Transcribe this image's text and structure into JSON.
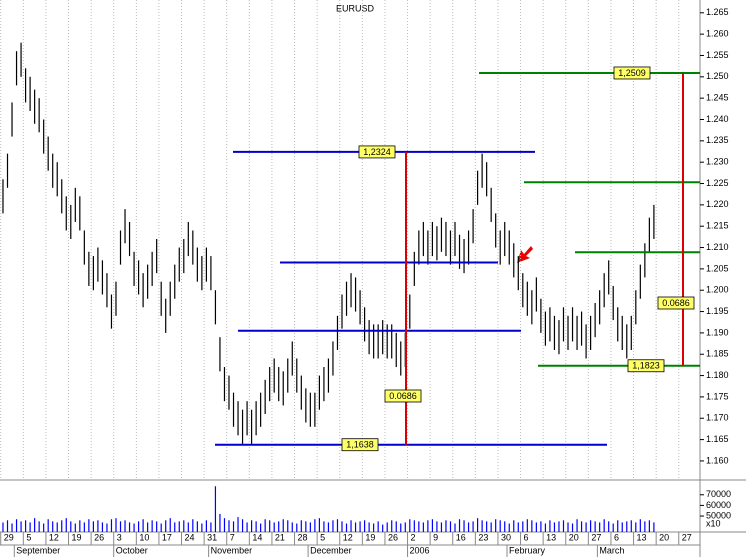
{
  "chart_data": {
    "type": "ohlc",
    "title": "EURUSD",
    "color": "#000000",
    "high": [
      1.226,
      1.232,
      1.244,
      1.256,
      1.258,
      1.252,
      1.25,
      1.247,
      1.245,
      1.24,
      1.236,
      1.232,
      1.23,
      1.226,
      1.222,
      1.22,
      1.224,
      1.222,
      1.214,
      1.209,
      1.208,
      1.21,
      1.207,
      1.204,
      1.199,
      1.202,
      1.214,
      1.219,
      1.216,
      1.209,
      1.207,
      1.204,
      1.206,
      1.209,
      1.212,
      1.202,
      1.198,
      1.202,
      1.206,
      1.21,
      1.212,
      1.216,
      1.214,
      1.21,
      1.208,
      1.21,
      1.208,
      1.2,
      1.189,
      1.182,
      1.18,
      1.176,
      1.174,
      1.172,
      1.174,
      1.172,
      1.174,
      1.176,
      1.179,
      1.182,
      1.184,
      1.182,
      1.181,
      1.184,
      1.188,
      1.184,
      1.18,
      1.177,
      1.176,
      1.176,
      1.18,
      1.182,
      1.184,
      1.188,
      1.194,
      1.199,
      1.202,
      1.204,
      1.203,
      1.2,
      1.196,
      1.193,
      1.192,
      1.192,
      1.193,
      1.192,
      1.192,
      1.19,
      1.188,
      1.19,
      1.199,
      1.209,
      1.214,
      1.216,
      1.214,
      1.216,
      1.215,
      1.217,
      1.216,
      1.214,
      1.216,
      1.213,
      1.212,
      1.214,
      1.219,
      1.228,
      1.232,
      1.23,
      1.224,
      1.218,
      1.214,
      1.216,
      1.214,
      1.211,
      1.208,
      1.204,
      1.202,
      1.2,
      1.203,
      1.198,
      1.195,
      1.196,
      1.194,
      1.193,
      1.196,
      1.194,
      1.196,
      1.194,
      1.195,
      1.192,
      1.194,
      1.197,
      1.2,
      1.204,
      1.207,
      1.201,
      1.196,
      1.194,
      1.192,
      1.194,
      1.2,
      1.206,
      1.211,
      1.217,
      1.22
    ],
    "low": [
      1.218,
      1.224,
      1.236,
      1.248,
      1.25,
      1.244,
      1.242,
      1.239,
      1.237,
      1.232,
      1.228,
      1.224,
      1.222,
      1.218,
      1.214,
      1.212,
      1.216,
      1.214,
      1.206,
      1.201,
      1.2,
      1.202,
      1.199,
      1.196,
      1.191,
      1.194,
      1.206,
      1.211,
      1.208,
      1.201,
      1.199,
      1.196,
      1.198,
      1.201,
      1.204,
      1.194,
      1.19,
      1.194,
      1.198,
      1.202,
      1.204,
      1.208,
      1.206,
      1.202,
      1.2,
      1.202,
      1.2,
      1.192,
      1.181,
      1.174,
      1.172,
      1.168,
      1.166,
      1.164,
      1.166,
      1.164,
      1.166,
      1.168,
      1.171,
      1.174,
      1.176,
      1.174,
      1.173,
      1.176,
      1.18,
      1.176,
      1.172,
      1.169,
      1.168,
      1.168,
      1.172,
      1.174,
      1.176,
      1.18,
      1.186,
      1.191,
      1.194,
      1.196,
      1.195,
      1.192,
      1.188,
      1.185,
      1.184,
      1.184,
      1.185,
      1.184,
      1.184,
      1.182,
      1.18,
      1.182,
      1.191,
      1.201,
      1.206,
      1.208,
      1.206,
      1.208,
      1.207,
      1.209,
      1.208,
      1.206,
      1.208,
      1.205,
      1.204,
      1.206,
      1.211,
      1.22,
      1.224,
      1.222,
      1.216,
      1.21,
      1.206,
      1.208,
      1.206,
      1.203,
      1.2,
      1.196,
      1.194,
      1.192,
      1.195,
      1.19,
      1.187,
      1.188,
      1.186,
      1.185,
      1.188,
      1.186,
      1.188,
      1.186,
      1.187,
      1.184,
      1.186,
      1.189,
      1.192,
      1.196,
      1.199,
      1.193,
      1.188,
      1.186,
      1.184,
      1.186,
      1.192,
      1.198,
      1.203,
      1.209,
      1.212
    ],
    "volume": [
      44000,
      46000,
      43000,
      47000,
      45000,
      46000,
      44000,
      48000,
      45000,
      43000,
      47000,
      45000,
      44000,
      46000,
      48000,
      45000,
      43000,
      46000,
      44000,
      47000,
      45000,
      46000,
      44000,
      43000,
      47000,
      48000,
      45000,
      46000,
      44000,
      43000,
      45000,
      47000,
      44000,
      46000,
      45000,
      43000,
      46000,
      48000,
      44000,
      45000,
      46000,
      44000,
      47000,
      45000,
      43000,
      46000,
      44000,
      78000,
      52000,
      48000,
      46000,
      45000,
      49000,
      47000,
      44000,
      46000,
      45000,
      43000,
      47000,
      46000,
      44000,
      45000,
      47000,
      46000,
      44000,
      43000,
      46000,
      45000,
      44000,
      47000,
      48000,
      45000,
      44000,
      46000,
      47000,
      45000,
      43000,
      46000,
      44000,
      45000,
      46000,
      44000,
      43000,
      45000,
      42000,
      44000,
      46000,
      45000,
      43000,
      44000,
      47000,
      46000,
      45000,
      44000,
      46000,
      47000,
      45000,
      44000,
      46000,
      45000,
      43000,
      47000,
      46000,
      44000,
      45000,
      48000,
      46000,
      45000,
      44000,
      47000,
      46000,
      45000,
      43000,
      46000,
      44000,
      45000,
      47000,
      46000,
      44000,
      45000,
      43000,
      46000,
      44000,
      45000,
      46000,
      44000,
      43000,
      47000,
      45000,
      44000,
      46000,
      45000,
      44000,
      47000,
      45000,
      43000,
      46000,
      44000,
      45000,
      46000,
      44000,
      47000,
      45000,
      46000,
      44000
    ],
    "volume_color": "#0000ff",
    "ylim": [
      1.156,
      1.268
    ],
    "yticks": [
      1.265,
      {
        "value": 1.26,
        "label": "1.260"
      },
      1.255,
      {
        "value": 1.25,
        "label": "1.250"
      },
      1.245,
      {
        "value": 1.24,
        "label": "1.240"
      },
      1.235,
      {
        "value": 1.23,
        "label": "1.230"
      },
      1.225,
      {
        "value": 1.22,
        "label": "1.220"
      },
      1.215,
      {
        "value": 1.21,
        "label": "1.210"
      },
      1.205,
      {
        "value": 1.2,
        "label": "1.200"
      },
      1.195,
      {
        "value": 1.19,
        "label": "1.190"
      },
      1.185,
      {
        "value": 1.18,
        "label": "1.180"
      },
      1.175,
      {
        "value": 1.17,
        "label": "1.170"
      },
      1.165,
      {
        "value": 1.16,
        "label": "1.160"
      }
    ],
    "xlim": [
      -0.66,
      154.2
    ],
    "xticks": [
      {
        "value": 0,
        "label": "29"
      },
      {
        "value": 5,
        "label": "5"
      },
      {
        "value": 10,
        "label": "12"
      },
      {
        "value": 15,
        "label": "19"
      },
      {
        "value": 20,
        "label": "26"
      },
      {
        "value": 25,
        "label": "3"
      },
      {
        "value": 30,
        "label": "10"
      },
      {
        "value": 35,
        "label": "17"
      },
      {
        "value": 40,
        "label": "24"
      },
      {
        "value": 45,
        "label": "31"
      },
      {
        "value": 50,
        "label": "7"
      },
      {
        "value": 55,
        "label": "14"
      },
      {
        "value": 60,
        "label": "21"
      },
      {
        "value": 65,
        "label": "28"
      },
      {
        "value": 70,
        "label": "5"
      },
      {
        "value": 75,
        "label": "12"
      },
      {
        "value": 80,
        "label": "19"
      },
      {
        "value": 85,
        "label": "26"
      },
      {
        "value": 90,
        "label": "2"
      },
      {
        "value": 95,
        "label": "9"
      },
      {
        "value": 100,
        "label": "16"
      },
      {
        "value": 105,
        "label": "23"
      },
      {
        "value": 110,
        "label": "30"
      },
      {
        "value": 115,
        "label": "6"
      },
      {
        "value": 120,
        "label": "13"
      },
      {
        "value": 125,
        "label": "20"
      },
      {
        "value": 130,
        "label": "27"
      },
      {
        "value": 135,
        "label": "6"
      },
      {
        "value": 140,
        "label": "13"
      },
      {
        "value": 145,
        "label": "20"
      },
      {
        "value": 150,
        "label": "27"
      }
    ],
    "months": [
      {
        "value": 3,
        "label": "September"
      },
      {
        "value": 25,
        "label": "October"
      },
      {
        "value": 46,
        "label": "November"
      },
      {
        "value": 68,
        "label": "December"
      },
      {
        "value": 90,
        "label": "2006"
      },
      {
        "value": 112,
        "label": "February"
      },
      {
        "value": 132,
        "label": "March"
      }
    ],
    "grid": true,
    "levels": [
      {
        "value": 1.2324,
        "label": "1,2324",
        "color": "#0000cc"
      },
      {
        "value": 1.2065,
        "color": "#0000cc"
      },
      {
        "value": 1.1905,
        "color": "#0000cc"
      },
      {
        "value": 1.1638,
        "label": "1,1638",
        "color": "#0000cc"
      },
      {
        "value": 1.2509,
        "label": "1,2509",
        "color": "#008000"
      },
      {
        "value": 1.2253,
        "color": "#008000"
      },
      {
        "value": 1.2089,
        "color": "#008000"
      },
      {
        "value": 1.1823,
        "label": "1,1823",
        "color": "#008000"
      }
    ],
    "measures": [
      {
        "value": 0.0686,
        "low": 1.1638,
        "high": 1.2324,
        "color": "#dd0000"
      },
      {
        "value": 0.0686,
        "low": 1.1823,
        "high": 1.2509,
        "color": "#dd0000"
      }
    ],
    "volume_ylim": [
      35000,
      82000
    ],
    "volume_yticks": [
      70000,
      60000,
      50000
    ],
    "volume_unit": "x10"
  }
}
